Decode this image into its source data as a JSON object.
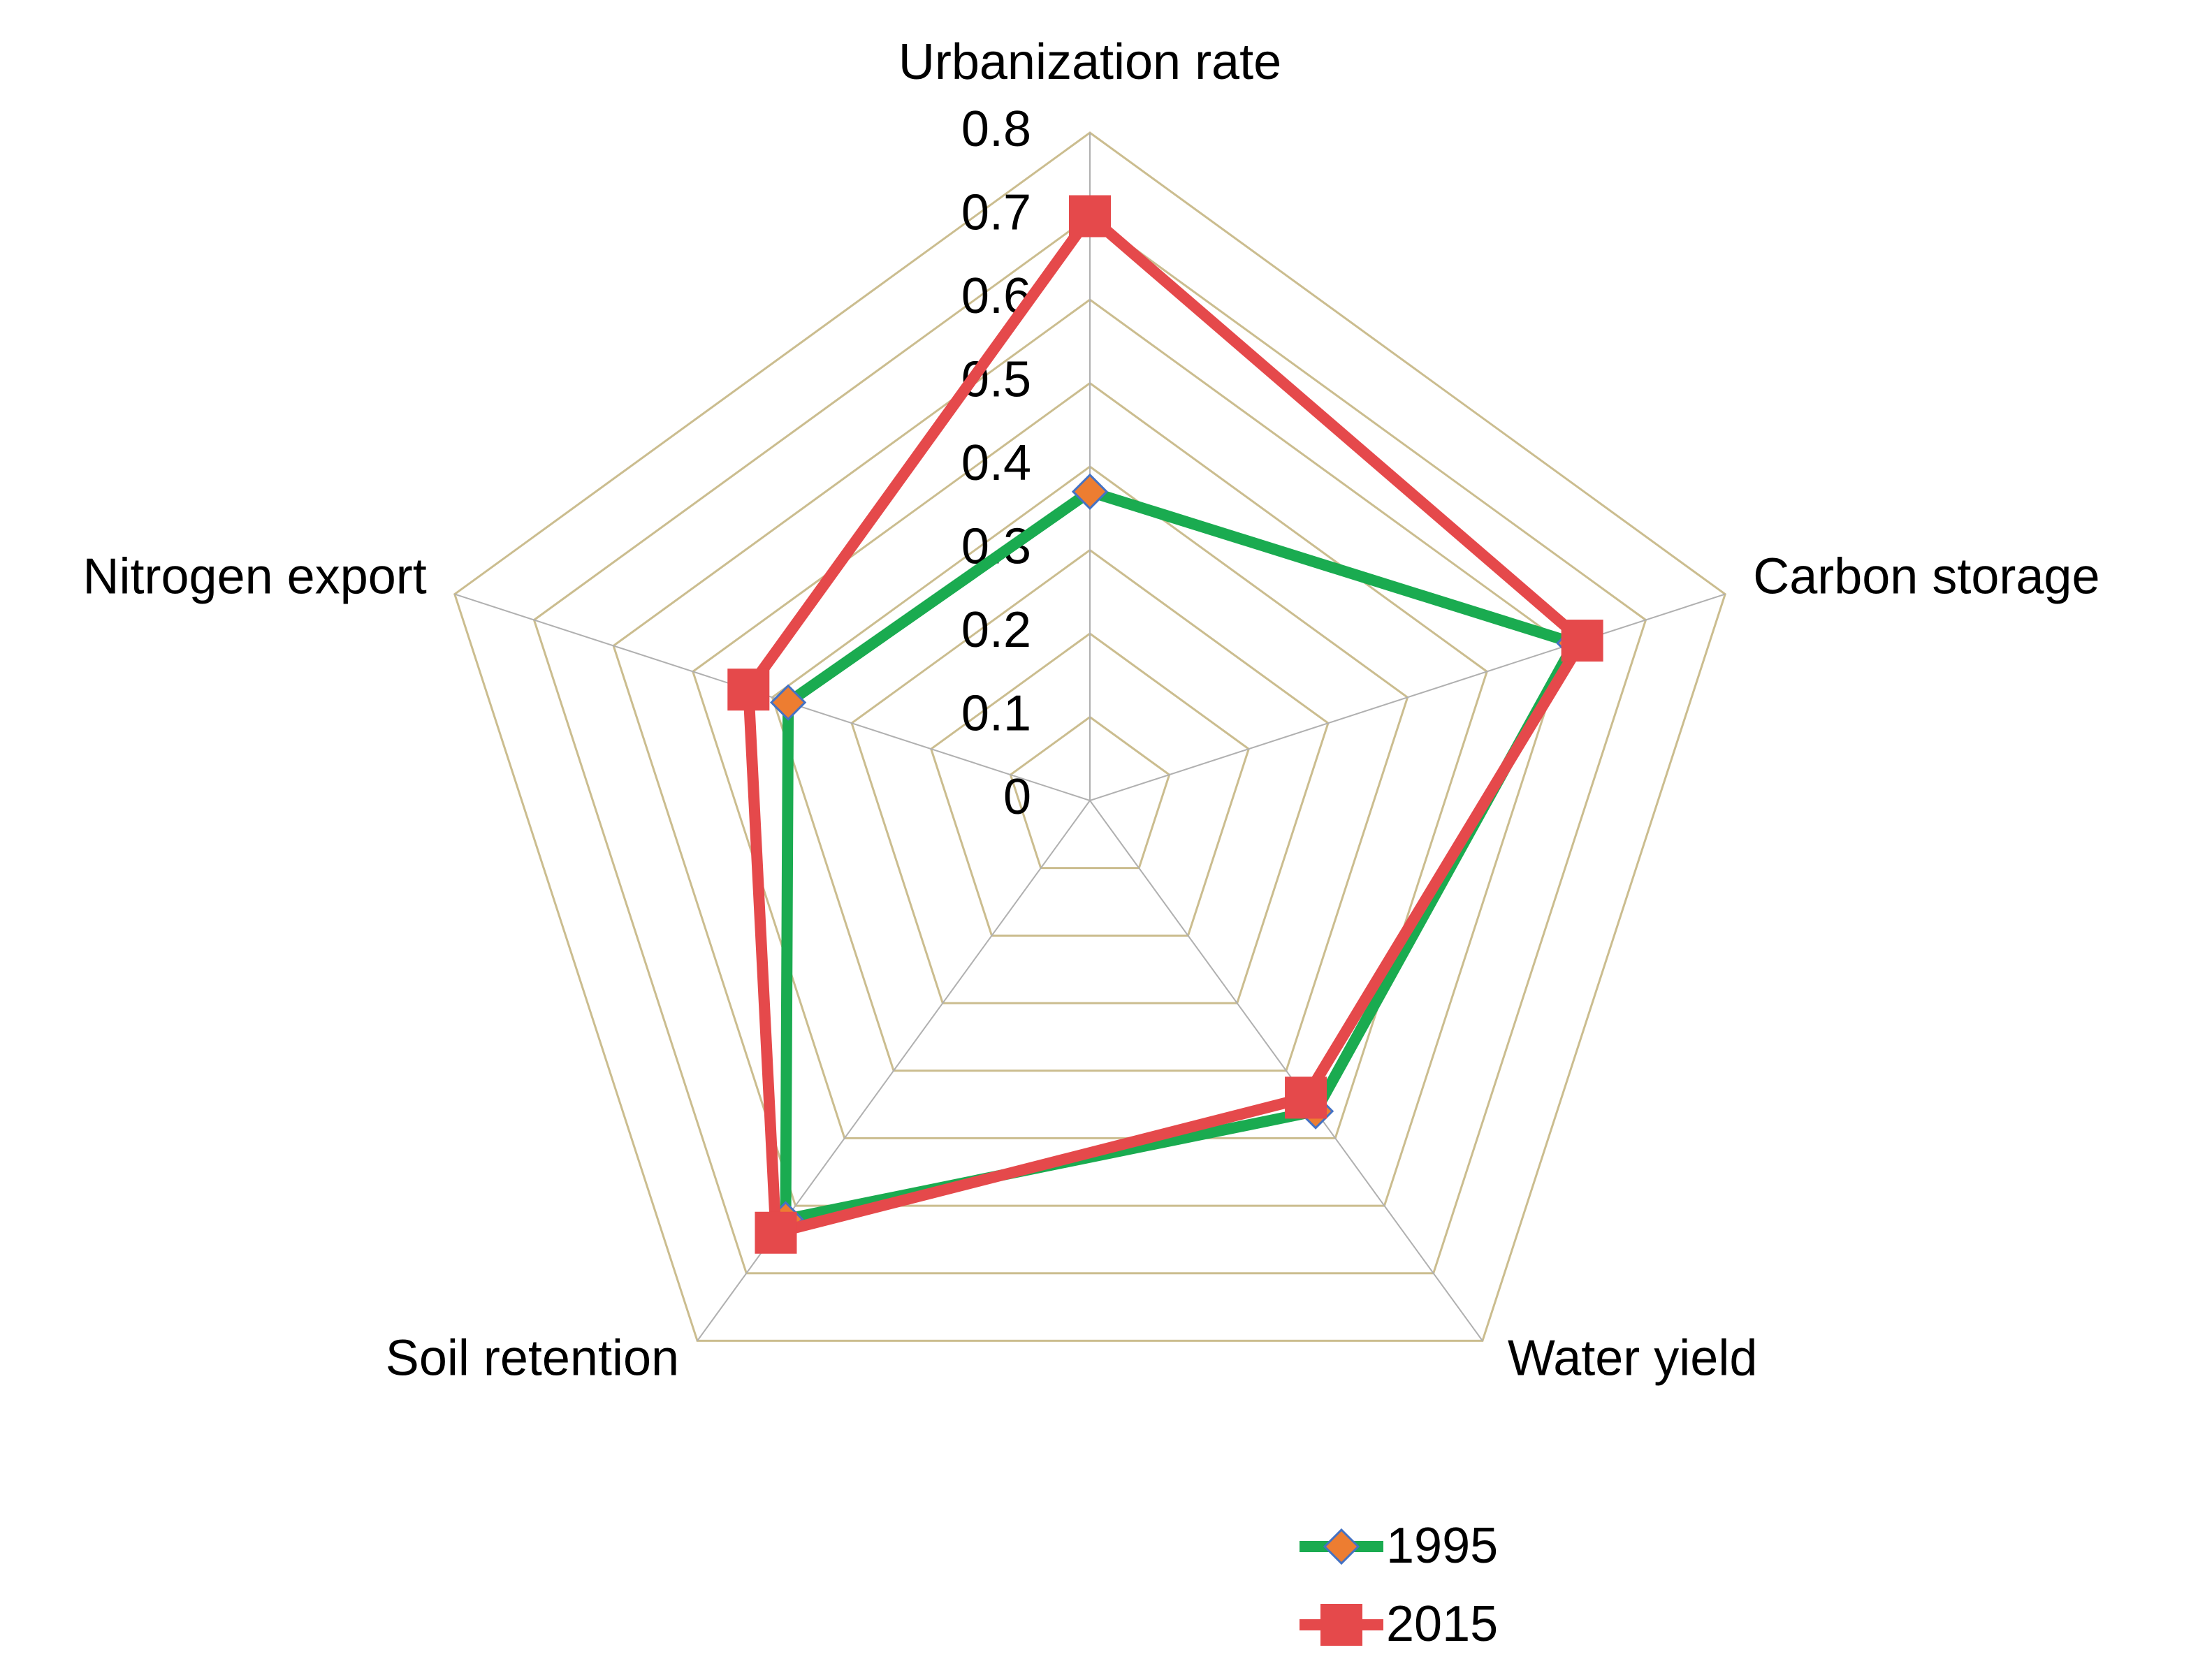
{
  "chart_data": {
    "type": "radar",
    "categories": [
      "Urbanization rate",
      "Carbon storage",
      "Water yield",
      "Soil retention",
      "Nitrogen export"
    ],
    "series": [
      {
        "name": "1995",
        "color": "#1aab50",
        "marker_color": "#ed7d31",
        "values": [
          0.37,
          0.61,
          0.46,
          0.62,
          0.38
        ]
      },
      {
        "name": "2015",
        "color": "#e5494b",
        "marker_color": "#e5494b",
        "values": [
          0.7,
          0.62,
          0.44,
          0.64,
          0.43
        ]
      }
    ],
    "ylim": [
      0,
      0.8
    ],
    "yticks": [
      0,
      0.1,
      0.2,
      0.3,
      0.4,
      0.5,
      0.6,
      0.7,
      0.8
    ],
    "grid": true
  }
}
